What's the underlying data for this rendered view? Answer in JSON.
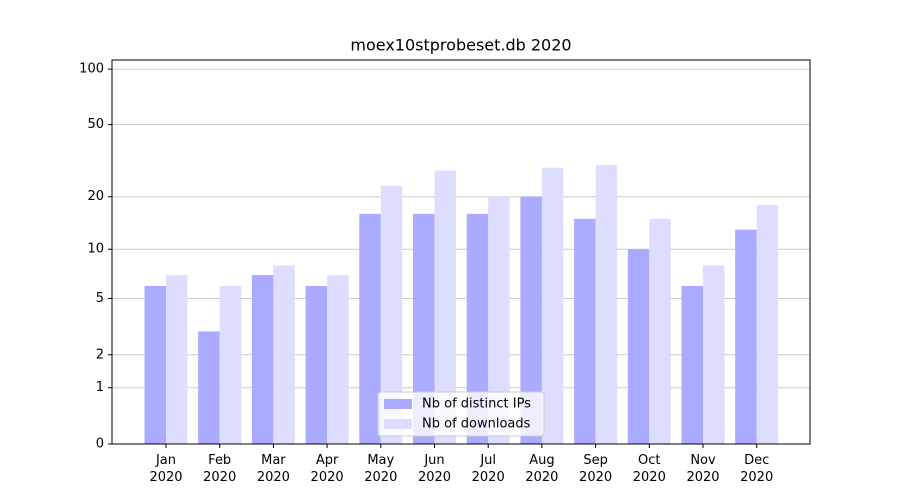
{
  "chart_data": {
    "type": "bar",
    "title": "moex10stprobeset.db 2020",
    "categories": [
      "Jan\n2020",
      "Feb\n2020",
      "Mar\n2020",
      "Apr\n2020",
      "May\n2020",
      "Jun\n2020",
      "Jul\n2020",
      "Aug\n2020",
      "Sep\n2020",
      "Oct\n2020",
      "Nov\n2020",
      "Dec\n2020"
    ],
    "series": [
      {
        "name": "Nb of distinct IPs",
        "color": "#aaaaff",
        "values": [
          6,
          3,
          7,
          6,
          16,
          16,
          16,
          20,
          15,
          10,
          6,
          13
        ]
      },
      {
        "name": "Nb of downloads",
        "color": "#ddddff",
        "values": [
          7,
          6,
          8,
          7,
          23,
          28,
          20,
          29,
          30,
          15,
          8,
          18
        ]
      }
    ],
    "yscale": "log1p",
    "ylim": [
      0,
      112
    ],
    "yticks": [
      0,
      1,
      2,
      5,
      10,
      20,
      50,
      100
    ],
    "grid": true,
    "legend": "lower center"
  }
}
